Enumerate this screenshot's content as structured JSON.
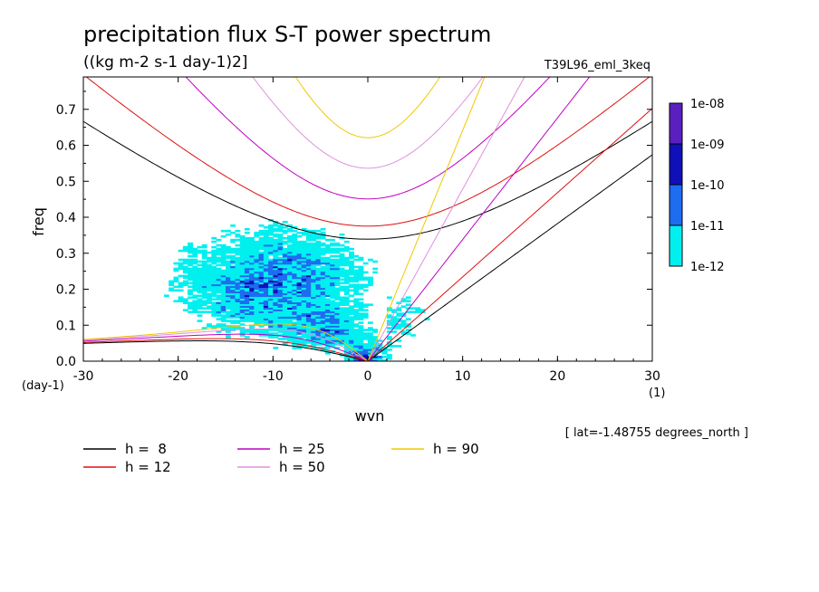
{
  "chart_data": {
    "type": "heatmap",
    "title": "precipitation flux S-T power spectrum",
    "subtitle": "((kg m-2 s-1 day-1)2]",
    "experiment": "T39L96_eml_3keq",
    "xlabel": "wvn",
    "ylabel": "freq",
    "y_unit_label": "(day-1)",
    "x_unit_label": "(1)",
    "xlim": [
      -30,
      30
    ],
    "ylim": [
      0,
      0.79
    ],
    "x_ticks": [
      -30,
      -20,
      -10,
      0,
      10,
      20,
      30
    ],
    "x_tick_labels": [
      "-30",
      "-20",
      "-10",
      "0",
      "10",
      "20",
      "30"
    ],
    "y_ticks": [
      0,
      0.1,
      0.2,
      0.3,
      0.4,
      0.5,
      0.6,
      0.7
    ],
    "y_tick_labels": [
      "0.0",
      "0.1",
      "0.2",
      "0.3",
      "0.4",
      "0.5",
      "0.6",
      "0.7"
    ],
    "footnote": "[ lat=-1.48755 degrees_north ]",
    "colorbar": {
      "labels": [
        "1e-08",
        "1e-09",
        "1e-10",
        "1e-11",
        "1e-12"
      ],
      "colors": [
        "#5a1fbf",
        "#1010b8",
        "#1e6cf0",
        "#00f0f0"
      ]
    },
    "shade_levels": [
      {
        "min": "1e-12",
        "max": "1e-11",
        "color": "#00f0f0"
      },
      {
        "min": "1e-11",
        "max": "1e-10",
        "color": "#1e6cf0"
      },
      {
        "min": "1e-10",
        "max": "1e-09",
        "color": "#1010b8"
      }
    ],
    "dispersion_curves": [
      {
        "label": "h =  8",
        "h": 8,
        "color": "#000000"
      },
      {
        "label": "h = 12",
        "h": 12,
        "color": "#e01010"
      },
      {
        "label": "h = 25",
        "h": 25,
        "color": "#c000c0"
      },
      {
        "label": "h = 50",
        "h": 50,
        "color": "#e090e0"
      },
      {
        "label": "h = 90",
        "h": 90,
        "color": "#f0c800"
      }
    ]
  }
}
